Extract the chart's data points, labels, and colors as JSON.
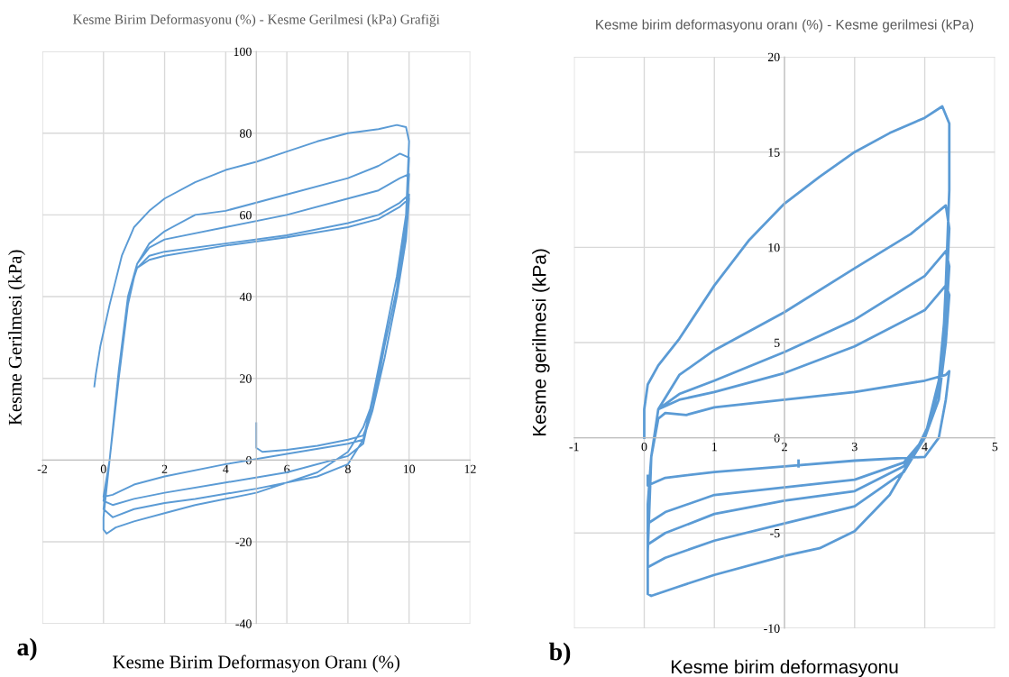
{
  "chart_data": [
    {
      "type": "line",
      "title": "Kesme Birim Deformasyonu (%) - Kesme Gerilmesi (kPa) Grafiği",
      "xlabel": "Kesme Birim Deformasyon Oranı (%)",
      "ylabel": "Kesme Gerilmesi (kPa)",
      "annotations": [
        "a)"
      ],
      "xlim": [
        -2,
        12
      ],
      "ylim": [
        -40,
        100
      ],
      "xticks": [
        -2,
        0,
        2,
        4,
        6,
        8,
        10,
        12
      ],
      "yticks": [
        -40,
        -20,
        0,
        20,
        40,
        60,
        80,
        100
      ],
      "grid": true,
      "legend": false,
      "series": [
        {
          "color": "#5b9bd5",
          "x": [
            -0.3,
            -0.25,
            -0.1,
            0.2,
            0.6,
            1.0,
            1.5,
            2.0,
            3.0,
            4.0,
            5.0,
            6.0,
            7.0,
            8.0,
            9.0,
            9.6,
            9.9,
            10.0,
            9.9,
            9.6,
            9.2,
            8.9,
            8.5,
            8.0,
            7.0,
            5.0,
            3.0,
            2.0,
            1.0,
            0.4,
            0.1,
            0.0,
            0.0,
            0.2,
            0.5,
            0.8,
            1.1,
            1.5,
            2.0,
            3.0,
            4.0,
            6.0,
            8.0,
            9.0,
            9.7,
            10.0,
            9.9,
            9.6,
            9.2,
            8.8,
            8.5,
            8.0,
            7.0,
            5.0,
            3.0,
            2.0,
            1.0,
            0.3,
            0.0,
            0.2,
            0.5,
            0.8,
            1.1,
            1.5,
            2.0,
            4.0,
            6.0,
            8.0,
            9.0,
            9.7,
            10.0,
            9.9,
            9.6,
            9.2,
            8.8,
            8.5,
            8.0,
            6.0,
            4.0,
            2.0,
            1.0,
            0.3,
            0.0,
            0.2,
            0.5,
            0.8,
            1.1,
            1.5,
            2.0,
            4.0,
            6.0,
            8.0,
            9.0,
            9.7,
            10.0,
            9.9,
            9.6,
            9.2,
            8.8,
            8.5,
            8.0,
            6.0,
            4.0,
            2.0,
            1.0,
            0.3,
            0.0,
            0.2,
            0.5,
            0.8,
            1.1,
            1.5,
            2.0,
            4.0,
            6.0,
            8.0,
            9.0,
            9.7,
            10.0,
            9.9,
            9.6,
            9.2,
            8.8,
            8.5,
            8.0,
            7.0,
            6.0,
            5.2,
            5.0,
            5.0
          ],
          "values": [
            18,
            21,
            28,
            38,
            50,
            57,
            61,
            64,
            68,
            71,
            73,
            75.5,
            78,
            80,
            81,
            82,
            81.5,
            78,
            60,
            42,
            28,
            16,
            8,
            2,
            -3,
            -8,
            -11,
            -13,
            -15,
            -16.5,
            -18,
            -17,
            -14,
            0,
            20,
            38,
            48,
            53,
            56,
            60,
            61,
            65,
            69,
            72,
            75,
            74,
            60,
            45,
            30,
            15,
            5,
            -1,
            -4,
            -7,
            -9.5,
            -10.5,
            -12,
            -14,
            -12,
            0,
            22,
            40,
            48,
            52,
            54,
            57,
            60,
            64,
            66,
            69,
            70,
            58,
            42,
            28,
            14,
            4,
            1,
            -3,
            -5.5,
            -8,
            -9.5,
            -11,
            -10,
            0,
            22,
            40,
            47,
            50,
            51,
            53,
            55,
            58,
            60,
            63,
            65,
            55,
            40,
            25,
            12,
            5,
            4,
            1.5,
            -1,
            -4,
            -6,
            -8.5,
            -9,
            0,
            22,
            40,
            47,
            49,
            50,
            52.5,
            54.5,
            57,
            59,
            62,
            64,
            54,
            40,
            25,
            12,
            6,
            5,
            3.5,
            2.5,
            2,
            3,
            9
          ]
        }
      ]
    },
    {
      "type": "line",
      "title": "Kesme birim deformasyonu oranı (%) - Kesme gerilmesi (kPa)",
      "xlabel": "Kesme birim deformasyonu",
      "ylabel": "Kesme gerilmesi (kPa)",
      "annotations": [
        "b)"
      ],
      "xlim": [
        -1,
        5
      ],
      "ylim": [
        -10,
        20
      ],
      "xticks": [
        -1,
        0,
        1,
        2,
        3,
        4,
        5
      ],
      "yticks": [
        -10,
        -5,
        0,
        5,
        10,
        15,
        20
      ],
      "grid": true,
      "legend": false,
      "series": [
        {
          "color": "#5b9bd5",
          "x": [
            0.0,
            0.0,
            0.05,
            0.2,
            0.5,
            1.0,
            1.5,
            2.0,
            2.5,
            3.0,
            3.5,
            4.0,
            4.25,
            4.35,
            4.35,
            4.3,
            4.25,
            4.1,
            3.9,
            3.5,
            3.0,
            2.5,
            2.0,
            1.0,
            0.5,
            0.1,
            0.05,
            0.05,
            0.1,
            0.2,
            0.5,
            1.0,
            2.0,
            3.0,
            3.8,
            4.3,
            4.35,
            4.3,
            4.2,
            4.0,
            3.7,
            3.0,
            2.0,
            1.0,
            0.3,
            0.05,
            0.05,
            0.1,
            0.2,
            0.5,
            1.0,
            2.0,
            3.0,
            4.0,
            4.3,
            4.35,
            4.3,
            4.2,
            4.0,
            3.7,
            3.0,
            2.0,
            1.0,
            0.3,
            0.05,
            0.05,
            0.1,
            0.2,
            0.5,
            1.0,
            2.0,
            3.0,
            4.0,
            4.3,
            4.35,
            4.3,
            4.2,
            4.0,
            3.7,
            3.0,
            2.0,
            1.0,
            0.3,
            0.05,
            0.05,
            0.1,
            0.2,
            0.3,
            0.6,
            1.0,
            2.0,
            3.0,
            4.0,
            4.3,
            4.35,
            4.3,
            4.2,
            4.0,
            3.0,
            2.0,
            1.0,
            0.3,
            0.05,
            0.05
          ],
          "values": [
            0,
            1.5,
            2.8,
            3.8,
            5.2,
            8.0,
            10.4,
            12.3,
            13.7,
            15.0,
            16.0,
            16.8,
            17.4,
            16.5,
            13,
            8,
            4,
            1,
            -0.5,
            -3.0,
            -4.9,
            -5.8,
            -6.2,
            -7.2,
            -7.8,
            -8.3,
            -8.2,
            -6,
            -1,
            1.5,
            3.3,
            4.6,
            6.6,
            8.9,
            10.7,
            12.2,
            11.0,
            7,
            3,
            0,
            -1.8,
            -3.6,
            -4.5,
            -5.4,
            -6.3,
            -6.8,
            -5,
            -1,
            1.5,
            2.3,
            3.0,
            4.5,
            6.2,
            8.5,
            9.8,
            9.0,
            6,
            2.5,
            0,
            -1.5,
            -2.8,
            -3.3,
            -4.0,
            -5.0,
            -5.6,
            -4.5,
            -1,
            1.5,
            2.0,
            2.4,
            3.4,
            4.8,
            6.7,
            8.0,
            7.5,
            5,
            2,
            0,
            -1.3,
            -2.2,
            -2.6,
            -3.0,
            -3.9,
            -4.5,
            -3.5,
            -1,
            1.0,
            1.3,
            1.2,
            1.6,
            2.0,
            2.4,
            3.0,
            3.3,
            3.5,
            2,
            0,
            -1.0,
            -1.2,
            -1.5,
            -1.8,
            -2.1,
            -2.5,
            -2.0
          ]
        },
        {
          "color": "#5b9bd5",
          "x": [
            2.2,
            2.2
          ],
          "values": [
            -1.5,
            -1.2
          ]
        }
      ]
    }
  ]
}
